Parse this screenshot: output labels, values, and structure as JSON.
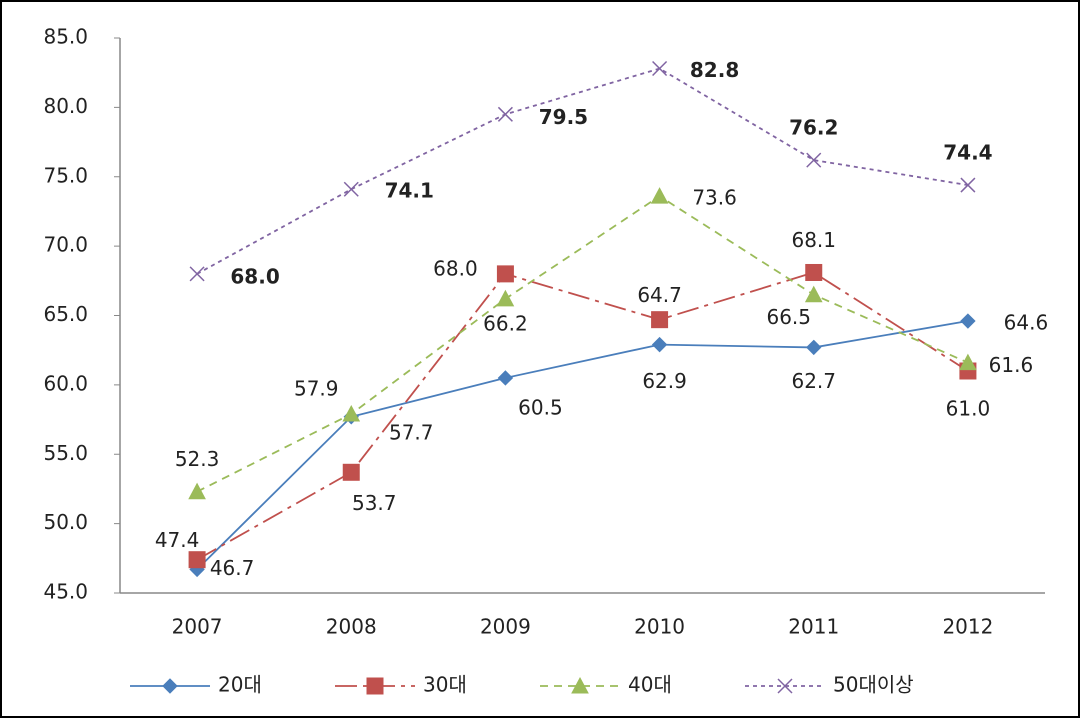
{
  "chart_data": {
    "type": "line",
    "categories": [
      "2007",
      "2008",
      "2009",
      "2010",
      "2011",
      "2012"
    ],
    "ylim": [
      45,
      85
    ],
    "yticks": [
      {
        "value": 45,
        "label": "45.0"
      },
      {
        "value": 50,
        "label": "50.0"
      },
      {
        "value": 55,
        "label": "55.0"
      },
      {
        "value": 60,
        "label": "60.0"
      },
      {
        "value": 65,
        "label": "65.0"
      },
      {
        "value": 70,
        "label": "70.0"
      },
      {
        "value": 75,
        "label": "75.0"
      },
      {
        "value": 80,
        "label": "80.0"
      },
      {
        "value": 85,
        "label": "85.0"
      }
    ],
    "legend": "bottom",
    "series": [
      {
        "name": "20대",
        "color": "#4a7ebb",
        "values": [
          46.7,
          57.7,
          60.5,
          62.9,
          62.7,
          64.6
        ],
        "value_labels": [
          "46.7",
          "57.7",
          "60.5",
          "62.9",
          "62.7",
          "64.6"
        ]
      },
      {
        "name": "30대",
        "color": "#c0504d",
        "values": [
          47.4,
          53.7,
          68.0,
          64.7,
          68.1,
          61.0
        ],
        "value_labels": [
          "47.4",
          "53.7",
          "68.0",
          "64.7",
          "68.1",
          "61.0"
        ]
      },
      {
        "name": "40대",
        "color": "#9bbb59",
        "values": [
          52.3,
          57.9,
          66.2,
          73.6,
          66.5,
          61.6
        ],
        "value_labels": [
          "52.3",
          "57.9",
          "66.2",
          "73.6",
          "66.5",
          "61.6"
        ]
      },
      {
        "name": "50대이상",
        "color": "#8064a2",
        "values": [
          68.0,
          74.1,
          79.5,
          82.8,
          76.2,
          74.4
        ],
        "value_labels": [
          "68.0",
          "74.1",
          "79.5",
          "82.8",
          "76.2",
          "74.4"
        ]
      }
    ]
  }
}
